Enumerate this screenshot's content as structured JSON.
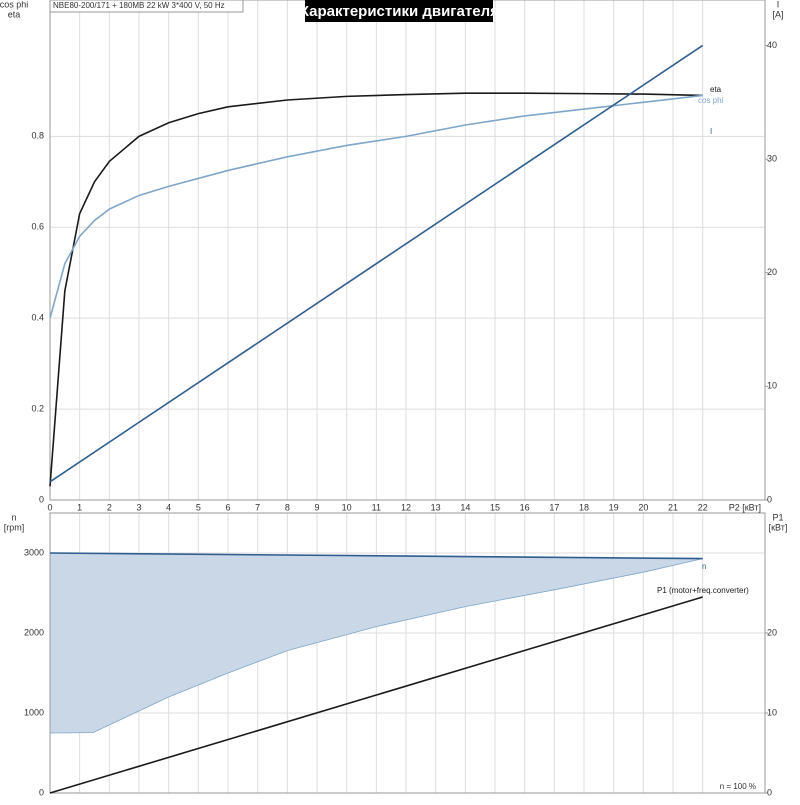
{
  "chart_data": [
    {
      "type": "line",
      "title": "Характеристики двигателя",
      "subtitle": "NBE80-200/171 + 180MB  22 kW  3*400 V, 50 Hz",
      "ylabel": [
        "cos phi",
        "eta"
      ],
      "y2label": [
        "I",
        "[A]"
      ],
      "xlabel": "P2 [кВт]",
      "xlim": [
        0,
        24.1
      ],
      "xticks": [
        0,
        1,
        2,
        3,
        4,
        5,
        6,
        7,
        8,
        9,
        10,
        11,
        12,
        13,
        14,
        15,
        16,
        17,
        18,
        19,
        20,
        21,
        22
      ],
      "ylim": [
        0,
        1.1
      ],
      "yticks": [
        0,
        0.2,
        0.4,
        0.6,
        0.8
      ],
      "y2lim": [
        0,
        44
      ],
      "y2ticks": [
        0,
        10,
        20,
        30,
        40
      ],
      "grid": true,
      "series": [
        {
          "name": "eta",
          "color": "#1a1a1a",
          "x": [
            0,
            0.5,
            1,
            1.5,
            2,
            3,
            4,
            5,
            6,
            8,
            10,
            12,
            14,
            16,
            18,
            20,
            22
          ],
          "values": [
            0.03,
            0.46,
            0.63,
            0.7,
            0.745,
            0.8,
            0.83,
            0.85,
            0.865,
            0.88,
            0.888,
            0.892,
            0.895,
            0.895,
            0.894,
            0.893,
            0.89
          ]
        },
        {
          "name": "cos phi",
          "color": "#7fa6c9",
          "x": [
            0,
            0.5,
            1,
            1.5,
            2,
            3,
            4,
            6,
            8,
            10,
            12,
            14,
            16,
            18,
            20,
            22
          ],
          "values": [
            0.4,
            0.52,
            0.58,
            0.615,
            0.64,
            0.67,
            0.69,
            0.725,
            0.755,
            0.78,
            0.8,
            0.825,
            0.845,
            0.86,
            0.875,
            0.89
          ]
        },
        {
          "name": "I",
          "color": "#2e5d8f",
          "axis": "y2",
          "x": [
            0,
            22
          ],
          "values": [
            1.6,
            40
          ]
        }
      ]
    },
    {
      "type": "line",
      "ylabel": [
        "n",
        "[rpm]"
      ],
      "y2label": [
        "P1",
        "[кВт]"
      ],
      "annotation": "n = 100 %",
      "xlim": [
        0,
        24.1
      ],
      "xticks": [
        0,
        1,
        2,
        3,
        4,
        5,
        6,
        7,
        8,
        9,
        10,
        11,
        12,
        13,
        14,
        15,
        16,
        17,
        18,
        19,
        20,
        21,
        22
      ],
      "ylim": [
        0,
        3500
      ],
      "yticks": [
        0,
        1000,
        2000,
        3000
      ],
      "y2lim": [
        0,
        35
      ],
      "y2ticks": [
        0,
        10,
        20
      ],
      "grid": true,
      "area": {
        "color": "#c9d7e6",
        "x": [
          0,
          1.45,
          4,
          6,
          8,
          11,
          14,
          17,
          20,
          22
        ],
        "values": [
          750,
          755,
          1200,
          1500,
          1780,
          2080,
          2330,
          2540,
          2760,
          2930
        ]
      },
      "series": [
        {
          "name": "n",
          "color": "#2e5d8f",
          "x": [
            0,
            22
          ],
          "values": [
            3000,
            2930
          ]
        },
        {
          "name": "P1 (motor+freq.converter)",
          "color": "#1a1a1a",
          "axis": "y2",
          "x": [
            0,
            22
          ],
          "values": [
            0,
            24.5
          ]
        }
      ]
    }
  ]
}
